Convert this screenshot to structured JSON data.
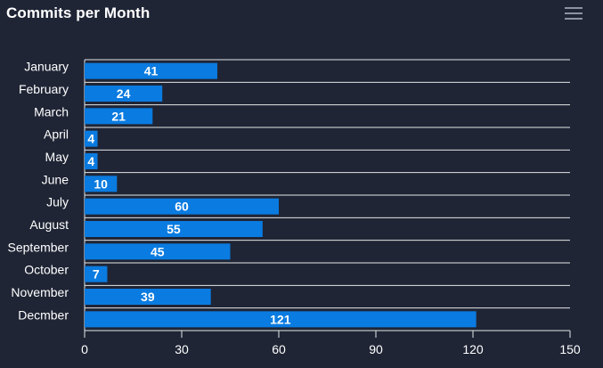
{
  "chart_title": "Commits per Month",
  "toolbar": {
    "menu_icon": "hamburger-menu-icon"
  },
  "colors": {
    "background": "#1f2535",
    "bar": "#0a7be0",
    "grid": "#e6e6e6",
    "text": "#ffffff",
    "icon": "#8c93a3"
  },
  "chart_data": {
    "type": "bar",
    "orientation": "horizontal",
    "title": "Commits per Month",
    "categories": [
      "January",
      "February",
      "March",
      "April",
      "May",
      "June",
      "July",
      "August",
      "September",
      "October",
      "November",
      "Decmber"
    ],
    "values": [
      41,
      24,
      21,
      4,
      4,
      10,
      60,
      55,
      45,
      7,
      39,
      121
    ],
    "xlim": [
      0,
      150
    ],
    "xticks": [
      0,
      30,
      60,
      90,
      120,
      150
    ],
    "xticklabels": [
      "0",
      "30",
      "60",
      "90",
      "120",
      "150"
    ],
    "xlabel": "",
    "ylabel": "",
    "data_labels": true,
    "grid": "horizontal lines between categories",
    "legend": "none"
  }
}
